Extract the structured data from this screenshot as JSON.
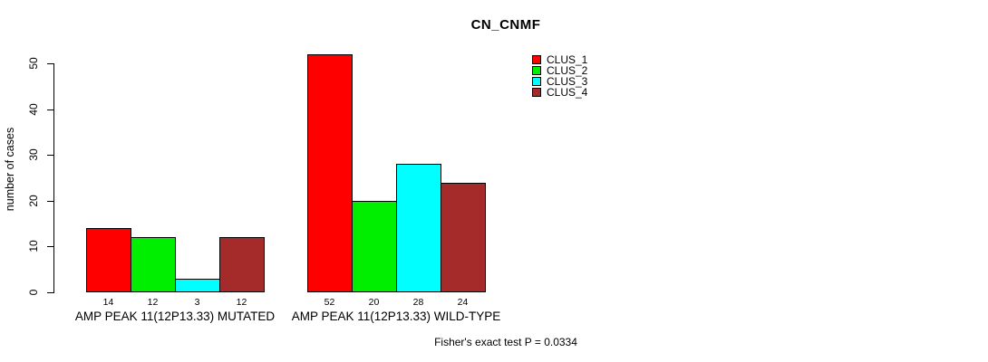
{
  "title": "CN_CNMF",
  "footer": "Fisher's exact test P = 0.0334",
  "chart_data": {
    "type": "bar",
    "title": "CN_CNMF",
    "xlabel": "",
    "ylabel": "number of cases",
    "ylim": [
      0,
      52
    ],
    "yticks": [
      0,
      10,
      20,
      30,
      40,
      50
    ],
    "grid": false,
    "legend_position": "top-right",
    "bar_value_labels": true,
    "categories": [
      "AMP PEAK 11(12P13.33) MUTATED",
      "AMP PEAK 11(12P13.33) WILD-TYPE"
    ],
    "series": [
      {
        "name": "CLUS_1",
        "color": "#ff0000",
        "values": [
          14,
          52
        ]
      },
      {
        "name": "CLUS_2",
        "color": "#00ee00",
        "values": [
          12,
          20
        ]
      },
      {
        "name": "CLUS_3",
        "color": "#00ffff",
        "values": [
          3,
          28
        ]
      },
      {
        "name": "CLUS_4",
        "color": "#a52a2a",
        "values": [
          12,
          24
        ]
      }
    ],
    "annotation": "Fisher's exact test P = 0.0334"
  }
}
